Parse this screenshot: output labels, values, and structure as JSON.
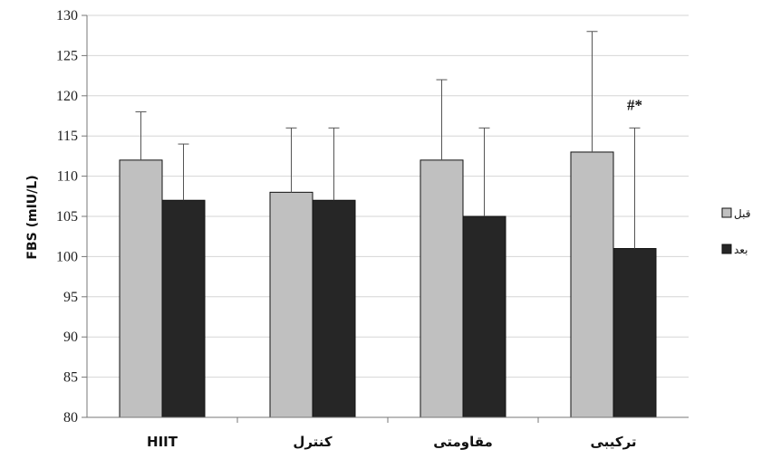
{
  "chart_data": {
    "type": "bar",
    "ylabel": "FBS (mIU/L)",
    "ylim": [
      80,
      130
    ],
    "ytick_step": 5,
    "grid": true,
    "legend_position": "right",
    "categories": [
      "HIIT",
      "کنترل",
      "مقاومتی",
      "ترکیبی"
    ],
    "series": [
      {
        "name": "قبل",
        "color": "#c0c0c0",
        "values": [
          112,
          108,
          112,
          113
        ],
        "error_upper": [
          118,
          116,
          122,
          128
        ]
      },
      {
        "name": "بعد",
        "color": "#262626",
        "values": [
          107,
          107,
          105,
          101
        ],
        "error_upper": [
          114,
          116,
          116,
          116
        ]
      }
    ],
    "annotations": [
      {
        "category_index": 3,
        "series_index": 1,
        "text": "#*"
      }
    ]
  }
}
